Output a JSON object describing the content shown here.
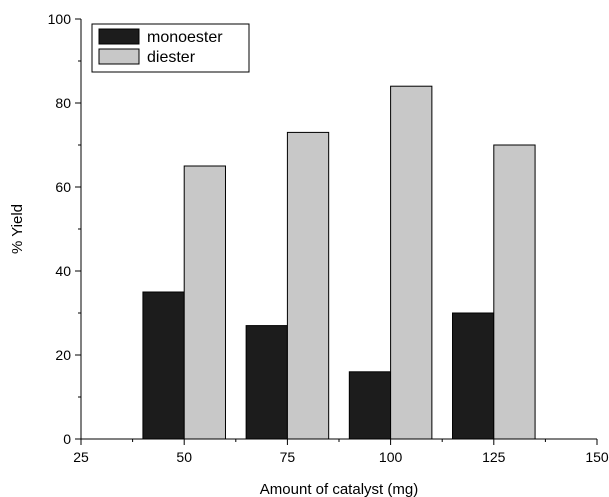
{
  "chart_data": {
    "type": "bar",
    "xlabel": "Amount of catalyst (mg)",
    "ylabel": "% Yield",
    "categories": [
      50,
      75,
      100,
      125
    ],
    "xlim": [
      25,
      150
    ],
    "ylim": [
      0,
      100
    ],
    "x_ticks": [
      25,
      50,
      75,
      100,
      125,
      150
    ],
    "y_ticks": [
      0,
      20,
      40,
      60,
      80,
      100
    ],
    "series": [
      {
        "name": "monoester",
        "values": [
          35,
          27,
          16,
          30
        ],
        "color": "#1c1c1c"
      },
      {
        "name": "diester",
        "values": [
          65,
          73,
          84,
          70
        ],
        "color": "#c8c8c8"
      }
    ],
    "legend_position": "top-left",
    "grid": false
  }
}
